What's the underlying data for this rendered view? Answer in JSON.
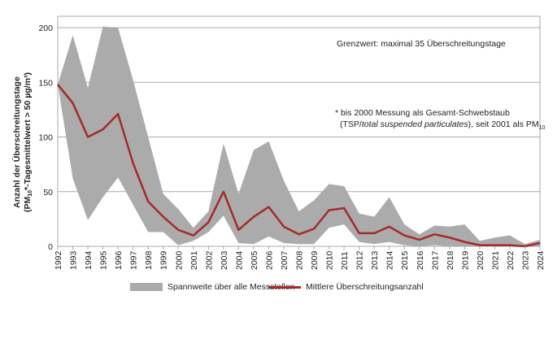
{
  "chart_data": {
    "type": "area",
    "x": [
      1992,
      1993,
      1994,
      1995,
      1996,
      1997,
      1998,
      1999,
      2000,
      2001,
      2002,
      2003,
      2004,
      2005,
      2006,
      2007,
      2008,
      2009,
      2010,
      2011,
      2012,
      2013,
      2014,
      2015,
      2016,
      2017,
      2018,
      2019,
      2020,
      2021,
      2022,
      2023,
      2024
    ],
    "series": [
      {
        "name": "Spannweite über alle Messstellen",
        "kind": "band",
        "max": [
          148,
          193,
          145,
          201,
          200,
          152,
          100,
          48,
          34,
          17,
          32,
          94,
          48,
          88,
          96,
          60,
          32,
          42,
          57,
          55,
          30,
          27,
          45,
          20,
          11,
          19,
          18,
          20,
          5,
          8,
          10,
          2,
          6
        ],
        "min": [
          148,
          62,
          24,
          45,
          63,
          38,
          13,
          13,
          1,
          5,
          13,
          28,
          3,
          2,
          9,
          3,
          2,
          2,
          17,
          20,
          4,
          2,
          4,
          1,
          0,
          1,
          0,
          0,
          0,
          0,
          0,
          0,
          0
        ],
        "color": "#ababab"
      },
      {
        "name": "Mittlere Überschreitungsanzahl",
        "kind": "line",
        "values": [
          148,
          131,
          100,
          107,
          121,
          76,
          41,
          27,
          15,
          10,
          22,
          50,
          15,
          27,
          36,
          18,
          11,
          16,
          33,
          35,
          12,
          12,
          18,
          10,
          6,
          11,
          8,
          4,
          1,
          1,
          1,
          0,
          3
        ],
        "color": "#a52a2a"
      }
    ],
    "ylabel_line1": "Anzahl der Überschreitungstage",
    "ylabel_line2_pre": "(PM",
    "ylabel_line2_sub": "10",
    "ylabel_line2_post": "*-Tagesmittelwert > 50 µg/m³)",
    "ylim": [
      0,
      200
    ],
    "yticks": [
      "0",
      "50",
      "100",
      "150",
      "200"
    ],
    "grid": true,
    "legend_position": "bottom"
  },
  "annotations": {
    "limit": "Grenzwert: maximal 35 Überschreitungstage",
    "footnote_line1": "* bis 2000 Messung als Gesamt-Schwebstaub",
    "footnote_pre": "(TSP/",
    "footnote_italic": "total suspended particulates",
    "footnote_post": "), seit 2001 als PM",
    "footnote_sub": "10"
  }
}
